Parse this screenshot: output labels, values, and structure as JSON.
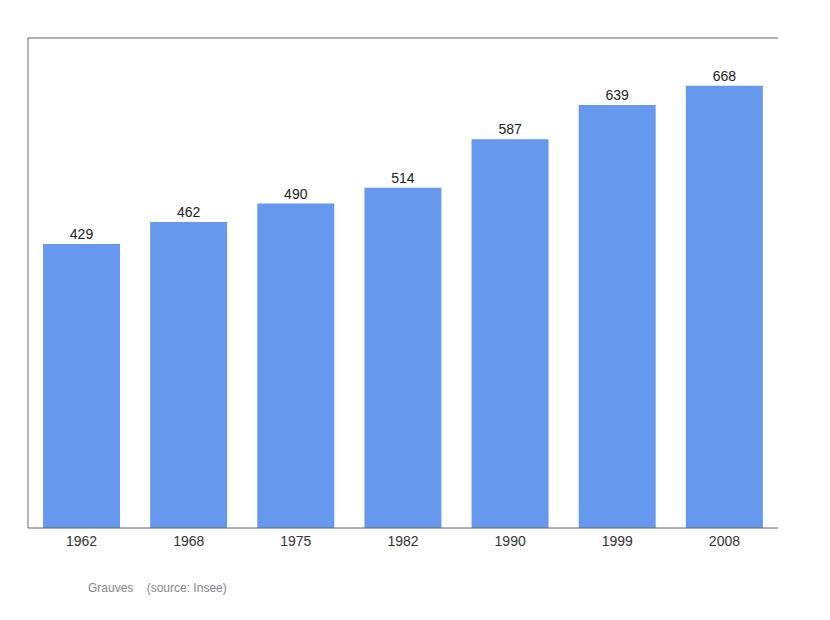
{
  "chart_data": {
    "type": "bar",
    "categories": [
      "1962",
      "1968",
      "1975",
      "1982",
      "1990",
      "1999",
      "2008"
    ],
    "values": [
      429,
      462,
      490,
      514,
      587,
      639,
      668
    ],
    "color": "#6699EE",
    "ylim": [
      0,
      740
    ],
    "yticks": [],
    "data_labels": true,
    "tick_labels": "x",
    "annotations": [
      "Grauves    (source: Insee)"
    ]
  }
}
